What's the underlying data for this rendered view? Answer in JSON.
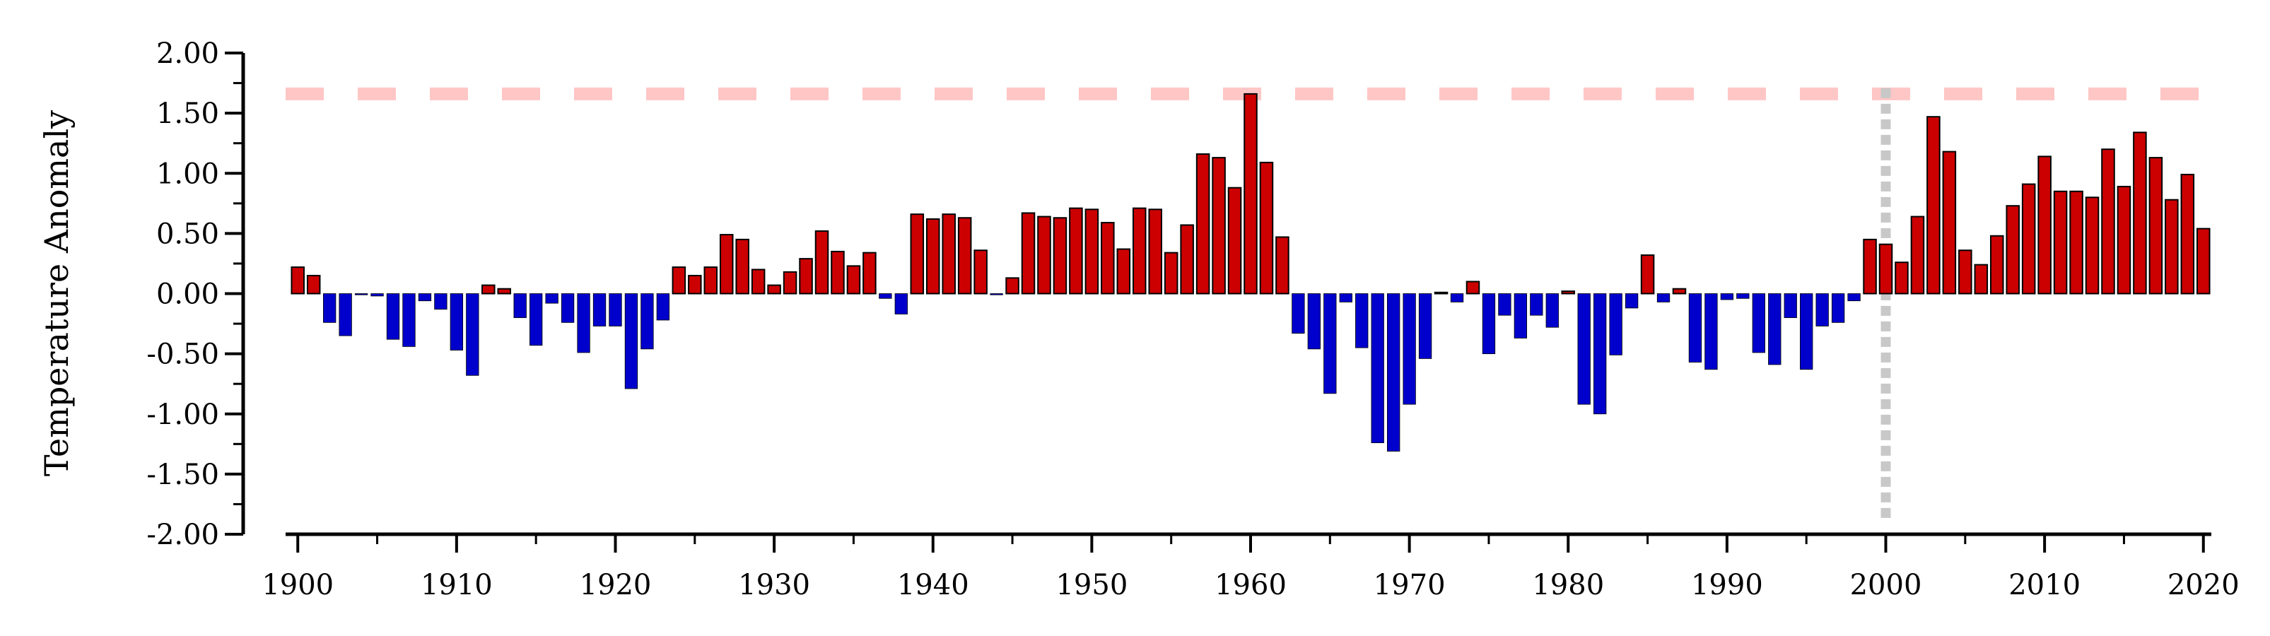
{
  "chart_data": {
    "type": "bar",
    "title": "",
    "xlabel": "",
    "ylabel": "Temperature Anomaly",
    "ylim": [
      -2.0,
      2.0
    ],
    "xlim": [
      1899.5,
      2020.5
    ],
    "yticks": [
      "2.00",
      "1.50",
      "1.00",
      "0.50",
      "0.00",
      "-0.50",
      "-1.00",
      "-1.50",
      "-2.00"
    ],
    "xticks": [
      "1900",
      "1910",
      "1920",
      "1930",
      "1940",
      "1950",
      "1960",
      "1970",
      "1980",
      "1990",
      "2000",
      "2010",
      "2020"
    ],
    "reference_line": {
      "value": 1.66,
      "style": "dashed",
      "color": "#ffc6c6"
    },
    "vertical_marker": {
      "year": 2000,
      "style": "dotted",
      "color": "#c8c8c8"
    },
    "colors": {
      "positive": "#cc0000",
      "negative": "#0000cc",
      "edge": "#000000"
    },
    "grid": false,
    "legend": "none",
    "x": [
      1900,
      1901,
      1902,
      1903,
      1904,
      1905,
      1906,
      1907,
      1908,
      1909,
      1910,
      1911,
      1912,
      1913,
      1914,
      1915,
      1916,
      1917,
      1918,
      1919,
      1920,
      1921,
      1922,
      1923,
      1924,
      1925,
      1926,
      1927,
      1928,
      1929,
      1930,
      1931,
      1932,
      1933,
      1934,
      1935,
      1936,
      1937,
      1938,
      1939,
      1940,
      1941,
      1942,
      1943,
      1944,
      1945,
      1946,
      1947,
      1948,
      1949,
      1950,
      1951,
      1952,
      1953,
      1954,
      1955,
      1956,
      1957,
      1958,
      1959,
      1960,
      1961,
      1962,
      1963,
      1964,
      1965,
      1966,
      1967,
      1968,
      1969,
      1970,
      1971,
      1972,
      1973,
      1974,
      1975,
      1976,
      1977,
      1978,
      1979,
      1980,
      1981,
      1982,
      1983,
      1984,
      1985,
      1986,
      1987,
      1988,
      1989,
      1990,
      1991,
      1992,
      1993,
      1994,
      1995,
      1996,
      1997,
      1998,
      1999,
      2000,
      2001,
      2002,
      2003,
      2004,
      2005,
      2006,
      2007,
      2008,
      2009,
      2010,
      2011,
      2012,
      2013,
      2014,
      2015,
      2016,
      2017,
      2018,
      2019,
      2020
    ],
    "values": [
      0.22,
      0.15,
      -0.24,
      -0.35,
      -0.01,
      -0.02,
      -0.38,
      -0.44,
      -0.06,
      -0.13,
      -0.47,
      -0.68,
      0.07,
      0.04,
      -0.2,
      -0.43,
      -0.08,
      -0.24,
      -0.49,
      -0.27,
      -0.27,
      -0.79,
      -0.46,
      -0.22,
      0.22,
      0.15,
      0.22,
      0.49,
      0.45,
      0.2,
      0.07,
      0.18,
      0.29,
      0.52,
      0.35,
      0.23,
      0.34,
      -0.04,
      -0.17,
      0.66,
      0.62,
      0.66,
      0.63,
      0.36,
      -0.01,
      0.13,
      0.67,
      0.64,
      0.63,
      0.71,
      0.7,
      0.59,
      0.37,
      0.71,
      0.7,
      0.34,
      0.57,
      1.16,
      1.13,
      0.88,
      1.66,
      1.09,
      0.47,
      -0.33,
      -0.46,
      -0.83,
      -0.07,
      -0.45,
      -1.24,
      -1.31,
      -0.92,
      -0.54,
      0.01,
      -0.07,
      0.1,
      -0.5,
      -0.18,
      -0.37,
      -0.18,
      -0.28,
      0.02,
      -0.92,
      -1.0,
      -0.51,
      -0.12,
      0.32,
      -0.07,
      0.04,
      -0.57,
      -0.63,
      -0.05,
      -0.04,
      -0.49,
      -0.59,
      -0.2,
      -0.63,
      -0.27,
      -0.24,
      -0.06,
      0.45,
      0.41,
      0.26,
      0.64,
      1.47,
      1.18,
      0.36,
      0.24,
      0.48,
      0.73,
      0.91,
      1.14,
      0.85,
      0.85,
      0.8,
      1.2,
      0.89,
      1.34,
      1.13,
      0.78,
      0.99,
      0.54
    ]
  }
}
